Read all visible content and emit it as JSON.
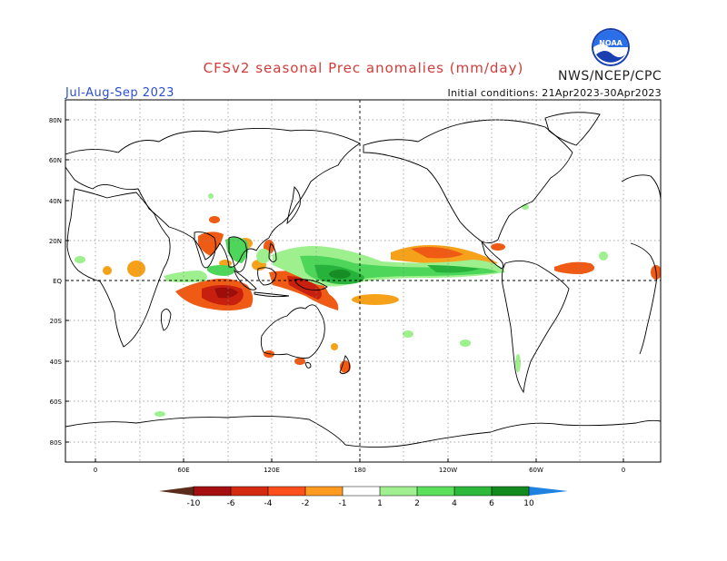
{
  "header": {
    "title": "CFSv2 seasonal Prec anomalies (mm/day)",
    "agency": "NWS/NCEP/CPC",
    "season": "Jul-Aug-Sep 2023",
    "initial_conditions": "Initial conditions: 21Apr2023-30Apr2023",
    "logo_text": "NOAA"
  },
  "map": {
    "lat_labels": [
      "80N",
      "60N",
      "40N",
      "20N",
      "EQ",
      "20S",
      "40S",
      "60S",
      "80S"
    ],
    "lon_labels": [
      "0",
      "60E",
      "120E",
      "180",
      "120W",
      "60W",
      "0"
    ]
  },
  "colorbar": {
    "labels": [
      "-10",
      "-6",
      "-4",
      "-2",
      "-1",
      "1",
      "2",
      "4",
      "6",
      "10"
    ],
    "colors": [
      "#5a2c1c",
      "#a50f0f",
      "#d42a10",
      "#ff4f1a",
      "#ff9a20",
      "#ffffff",
      "#a0f090",
      "#5ae05a",
      "#2cb83a",
      "#1f9a2a",
      "#138a1e",
      "#1e82e0"
    ]
  },
  "anomaly_colors": {
    "dry_light": "#f5a21a",
    "dry_medium": "#ef5a14",
    "dry_strong": "#c8200f",
    "dry_extreme": "#9d0d0a",
    "wet_light": "#9ef08f",
    "wet_medium": "#4ed65a",
    "wet_strong": "#27b33b",
    "wet_extreme": "#178d25"
  }
}
